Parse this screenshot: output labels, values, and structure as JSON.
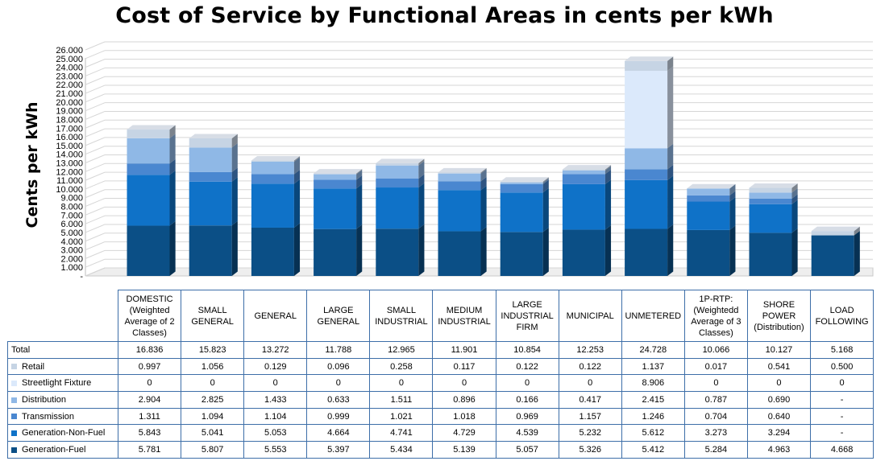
{
  "chart_data": {
    "type": "bar",
    "stacked": true,
    "three_d": true,
    "title": "Cost of Service by Functional Areas in cents per kWh",
    "xlabel": "",
    "ylabel": "Cents per kWh",
    "ylim": [
      0,
      26
    ],
    "yticks": [
      "-",
      "1.000",
      "2.000",
      "3.000",
      "4.000",
      "5.000",
      "6.000",
      "7.000",
      "8.000",
      "9.000",
      "10.000",
      "11.000",
      "12.000",
      "13.000",
      "14.000",
      "15.000",
      "16.000",
      "17.000",
      "18.000",
      "19.000",
      "20.000",
      "21.000",
      "22.000",
      "23.000",
      "24.000",
      "25.000",
      "26.000"
    ],
    "grid": true,
    "legend": "data-table",
    "categories": [
      "DOMESTIC (Weighted Average of 2 Classes)",
      "SMALL GENERAL",
      "GENERAL",
      "LARGE GENERAL",
      "SMALL INDUSTRIAL",
      "MEDIUM INDUSTRIAL",
      "LARGE INDUSTRIAL FIRM",
      "MUNICIPAL",
      "UNMETERED",
      "1P-RTP: (Weightedd Average of 3 Classes)",
      "SHORE POWER (Distribution)",
      "LOAD FOLLOWING"
    ],
    "totals_label": "Total",
    "totals": [
      "16.836",
      "15.823",
      "13.272",
      "11.788",
      "12.965",
      "11.901",
      "10.854",
      "12.253",
      "24.728",
      "10.066",
      "10.127",
      "5.168"
    ],
    "series": [
      {
        "name": "Retail",
        "color": "#c6d4e4",
        "values": [
          "0.997",
          "1.056",
          "0.129",
          "0.096",
          "0.258",
          "0.117",
          "0.122",
          "0.122",
          "1.137",
          "0.017",
          "0.541",
          "0.500"
        ]
      },
      {
        "name": "Streetlight Fixture",
        "color": "#dbe9fb",
        "values": [
          "0",
          "0",
          "0",
          "0",
          "0",
          "0",
          "0",
          "0",
          "8.906",
          "0",
          "0",
          "0"
        ]
      },
      {
        "name": "Distribution",
        "color": "#8fb8e6",
        "values": [
          "2.904",
          "2.825",
          "1.433",
          "0.633",
          "1.511",
          "0.896",
          "0.166",
          "0.417",
          "2.415",
          "0.787",
          "0.690",
          "-"
        ]
      },
      {
        "name": "Transmission",
        "color": "#4a87d0",
        "values": [
          "1.311",
          "1.094",
          "1.104",
          "0.999",
          "1.021",
          "1.018",
          "0.969",
          "1.157",
          "1.246",
          "0.704",
          "0.640",
          "-"
        ]
      },
      {
        "name": "Generation-Non-Fuel",
        "color": "#0f72c8",
        "values": [
          "5.843",
          "5.041",
          "5.053",
          "4.664",
          "4.741",
          "4.729",
          "4.539",
          "5.232",
          "5.612",
          "3.273",
          "3.294",
          "-"
        ]
      },
      {
        "name": "Generation-Fuel",
        "color": "#0b4f86",
        "values": [
          "5.781",
          "5.807",
          "5.553",
          "5.397",
          "5.434",
          "5.139",
          "5.057",
          "5.326",
          "5.412",
          "5.284",
          "4.963",
          "4.668"
        ]
      }
    ]
  }
}
